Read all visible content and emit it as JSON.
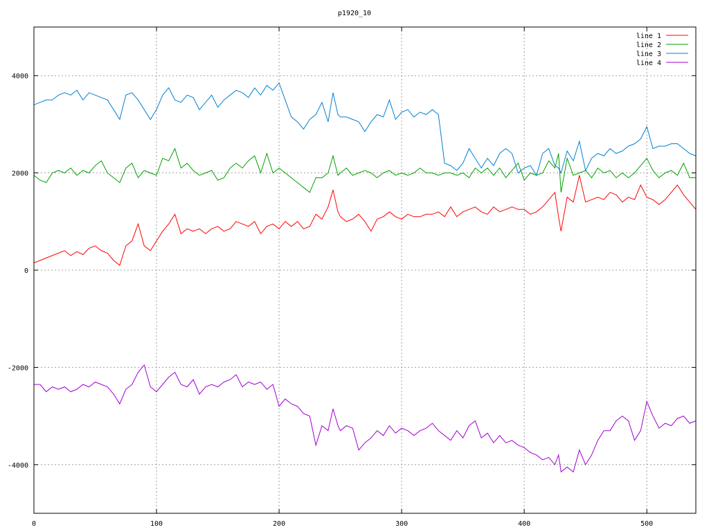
{
  "chart_data": {
    "type": "line",
    "title": "p1920_10",
    "xlabel": "",
    "ylabel": "",
    "xlim": [
      0,
      540
    ],
    "ylim": [
      -5000,
      5000
    ],
    "xticks": [
      0,
      100,
      200,
      300,
      400,
      500
    ],
    "yticks": [
      -4000,
      -2000,
      0,
      2000,
      4000
    ],
    "grid": true,
    "legend_position": "top-right",
    "series": [
      {
        "name": "line 1",
        "color": "#ff0000",
        "x": [
          0,
          5,
          10,
          15,
          20,
          25,
          30,
          35,
          40,
          45,
          50,
          55,
          60,
          65,
          70,
          75,
          80,
          85,
          90,
          95,
          100,
          105,
          110,
          115,
          120,
          125,
          130,
          135,
          140,
          145,
          150,
          155,
          160,
          165,
          170,
          175,
          180,
          185,
          190,
          195,
          200,
          205,
          210,
          215,
          220,
          225,
          230,
          235,
          240,
          244,
          248,
          250,
          255,
          260,
          265,
          270,
          275,
          280,
          285,
          290,
          295,
          300,
          305,
          310,
          315,
          320,
          325,
          330,
          335,
          340,
          345,
          350,
          355,
          360,
          365,
          370,
          375,
          380,
          385,
          390,
          395,
          400,
          405,
          410,
          415,
          420,
          425,
          428,
          430,
          435,
          440,
          445,
          450,
          455,
          460,
          465,
          470,
          475,
          480,
          485,
          490,
          495,
          500,
          505,
          510,
          515,
          520,
          525,
          530,
          535,
          540
        ],
        "values": [
          150,
          200,
          250,
          300,
          350,
          400,
          300,
          380,
          320,
          450,
          500,
          400,
          350,
          200,
          100,
          500,
          600,
          950,
          500,
          400,
          600,
          800,
          950,
          1150,
          750,
          850,
          800,
          850,
          750,
          850,
          900,
          800,
          850,
          1000,
          950,
          900,
          1000,
          750,
          900,
          950,
          850,
          1000,
          900,
          1000,
          850,
          900,
          1150,
          1050,
          1300,
          1650,
          1200,
          1100,
          1000,
          1050,
          1150,
          1000,
          800,
          1050,
          1100,
          1200,
          1100,
          1050,
          1150,
          1100,
          1100,
          1150,
          1150,
          1200,
          1100,
          1300,
          1100,
          1200,
          1250,
          1300,
          1200,
          1150,
          1300,
          1200,
          1250,
          1300,
          1250,
          1250,
          1150,
          1200,
          1300,
          1450,
          1600,
          1100,
          800,
          1500,
          1400,
          1950,
          1400,
          1450,
          1500,
          1450,
          1600,
          1550,
          1400,
          1500,
          1450,
          1750,
          1500,
          1450,
          1350,
          1450,
          1600,
          1750,
          1550,
          1400,
          1250
        ]
      },
      {
        "name": "line 2",
        "color": "#00a000",
        "x": [
          0,
          5,
          10,
          15,
          20,
          25,
          30,
          35,
          40,
          45,
          50,
          55,
          60,
          65,
          70,
          75,
          80,
          85,
          90,
          95,
          100,
          105,
          110,
          115,
          120,
          125,
          130,
          135,
          140,
          145,
          150,
          155,
          160,
          165,
          170,
          175,
          180,
          185,
          190,
          195,
          200,
          205,
          210,
          215,
          220,
          225,
          230,
          235,
          240,
          244,
          248,
          250,
          255,
          260,
          265,
          270,
          275,
          280,
          285,
          290,
          295,
          300,
          305,
          310,
          315,
          320,
          325,
          330,
          335,
          340,
          345,
          350,
          355,
          360,
          365,
          370,
          375,
          380,
          385,
          390,
          395,
          400,
          405,
          410,
          415,
          420,
          425,
          428,
          430,
          435,
          440,
          445,
          450,
          455,
          460,
          465,
          470,
          475,
          480,
          485,
          490,
          495,
          500,
          505,
          510,
          515,
          520,
          525,
          530,
          535,
          540
        ],
        "values": [
          1950,
          1850,
          1800,
          2000,
          2050,
          2000,
          2100,
          1950,
          2050,
          2000,
          2150,
          2250,
          2000,
          1900,
          1800,
          2100,
          2200,
          1900,
          2050,
          2000,
          1950,
          2300,
          2250,
          2500,
          2100,
          2200,
          2050,
          1950,
          2000,
          2050,
          1850,
          1900,
          2100,
          2200,
          2100,
          2250,
          2350,
          2000,
          2400,
          2000,
          2100,
          2000,
          1900,
          1800,
          1700,
          1600,
          1900,
          1900,
          2000,
          2350,
          1950,
          2000,
          2100,
          1950,
          2000,
          2050,
          2000,
          1900,
          2000,
          2050,
          1950,
          2000,
          1950,
          2000,
          2100,
          2000,
          2000,
          1950,
          2000,
          2000,
          1950,
          2000,
          1900,
          2100,
          2000,
          2100,
          1950,
          2100,
          1900,
          2050,
          2200,
          1850,
          2000,
          1950,
          2000,
          2250,
          2100,
          2400,
          1600,
          2300,
          1950,
          2000,
          2050,
          1900,
          2100,
          2000,
          2050,
          1900,
          2000,
          1900,
          2000,
          2150,
          2300,
          2050,
          1900,
          2000,
          2050,
          1950,
          2200,
          1900,
          1900
        ]
      },
      {
        "name": "line 3",
        "color": "#0080d0",
        "x": [
          0,
          5,
          10,
          15,
          20,
          25,
          30,
          35,
          40,
          45,
          50,
          55,
          60,
          65,
          70,
          75,
          80,
          85,
          90,
          95,
          100,
          105,
          110,
          115,
          120,
          125,
          130,
          135,
          140,
          145,
          150,
          155,
          160,
          165,
          170,
          175,
          180,
          185,
          190,
          195,
          200,
          205,
          210,
          215,
          220,
          225,
          230,
          235,
          240,
          244,
          248,
          250,
          255,
          260,
          265,
          270,
          275,
          280,
          285,
          290,
          295,
          300,
          305,
          310,
          315,
          320,
          325,
          330,
          335,
          340,
          345,
          350,
          355,
          360,
          365,
          370,
          375,
          380,
          385,
          390,
          395,
          400,
          405,
          410,
          415,
          420,
          425,
          428,
          430,
          435,
          440,
          445,
          450,
          455,
          460,
          465,
          470,
          475,
          480,
          485,
          490,
          495,
          500,
          505,
          510,
          515,
          520,
          525,
          530,
          535,
          540
        ],
        "values": [
          3400,
          3450,
          3500,
          3500,
          3600,
          3650,
          3600,
          3700,
          3500,
          3650,
          3600,
          3550,
          3500,
          3300,
          3100,
          3600,
          3650,
          3500,
          3300,
          3100,
          3300,
          3600,
          3750,
          3500,
          3450,
          3600,
          3550,
          3300,
          3450,
          3600,
          3350,
          3500,
          3600,
          3700,
          3650,
          3550,
          3750,
          3600,
          3800,
          3700,
          3850,
          3500,
          3150,
          3050,
          2900,
          3100,
          3200,
          3450,
          3050,
          3650,
          3200,
          3150,
          3150,
          3100,
          3050,
          2850,
          3050,
          3200,
          3150,
          3500,
          3100,
          3250,
          3300,
          3150,
          3250,
          3200,
          3300,
          3200,
          2200,
          2150,
          2050,
          2200,
          2500,
          2300,
          2100,
          2300,
          2150,
          2400,
          2500,
          2400,
          2000,
          2100,
          2150,
          1950,
          2400,
          2500,
          2150,
          2100,
          2000,
          2450,
          2250,
          2650,
          2050,
          2300,
          2400,
          2350,
          2500,
          2400,
          2450,
          2550,
          2600,
          2700,
          2950,
          2500,
          2550,
          2550,
          2600,
          2600,
          2500,
          2400,
          2350
        ]
      },
      {
        "name": "line 4",
        "color": "#a000d0",
        "x": [
          0,
          5,
          10,
          15,
          20,
          25,
          30,
          35,
          40,
          45,
          50,
          55,
          60,
          65,
          70,
          75,
          80,
          85,
          90,
          95,
          100,
          105,
          110,
          115,
          120,
          125,
          130,
          135,
          140,
          145,
          150,
          155,
          160,
          165,
          170,
          175,
          180,
          185,
          190,
          195,
          200,
          205,
          210,
          215,
          220,
          225,
          230,
          235,
          240,
          244,
          248,
          250,
          255,
          260,
          265,
          270,
          275,
          280,
          285,
          290,
          295,
          300,
          305,
          310,
          315,
          320,
          325,
          330,
          335,
          340,
          345,
          350,
          355,
          360,
          365,
          370,
          375,
          380,
          385,
          390,
          395,
          400,
          405,
          410,
          415,
          420,
          425,
          428,
          430,
          435,
          440,
          445,
          450,
          455,
          460,
          465,
          470,
          475,
          480,
          485,
          490,
          495,
          500,
          505,
          510,
          515,
          520,
          525,
          530,
          535,
          540
        ],
        "values": [
          -2350,
          -2350,
          -2500,
          -2400,
          -2450,
          -2400,
          -2500,
          -2450,
          -2350,
          -2400,
          -2300,
          -2350,
          -2400,
          -2550,
          -2750,
          -2450,
          -2350,
          -2100,
          -1950,
          -2400,
          -2500,
          -2350,
          -2200,
          -2100,
          -2350,
          -2400,
          -2250,
          -2550,
          -2400,
          -2350,
          -2400,
          -2300,
          -2250,
          -2150,
          -2400,
          -2300,
          -2350,
          -2300,
          -2450,
          -2350,
          -2800,
          -2650,
          -2750,
          -2800,
          -2950,
          -3000,
          -3600,
          -3200,
          -3300,
          -2850,
          -3200,
          -3300,
          -3200,
          -3250,
          -3700,
          -3550,
          -3450,
          -3300,
          -3400,
          -3200,
          -3350,
          -3250,
          -3300,
          -3400,
          -3300,
          -3250,
          -3150,
          -3300,
          -3400,
          -3500,
          -3300,
          -3450,
          -3200,
          -3100,
          -3450,
          -3350,
          -3550,
          -3400,
          -3550,
          -3500,
          -3600,
          -3650,
          -3750,
          -3800,
          -3900,
          -3850,
          -4000,
          -3800,
          -4150,
          -4050,
          -4150,
          -3700,
          -4000,
          -3800,
          -3500,
          -3300,
          -3300,
          -3100,
          -3000,
          -3100,
          -3500,
          -3300,
          -2700,
          -3000,
          -3250,
          -3150,
          -3200,
          -3050,
          -3000,
          -3150,
          -3100
        ]
      }
    ]
  }
}
